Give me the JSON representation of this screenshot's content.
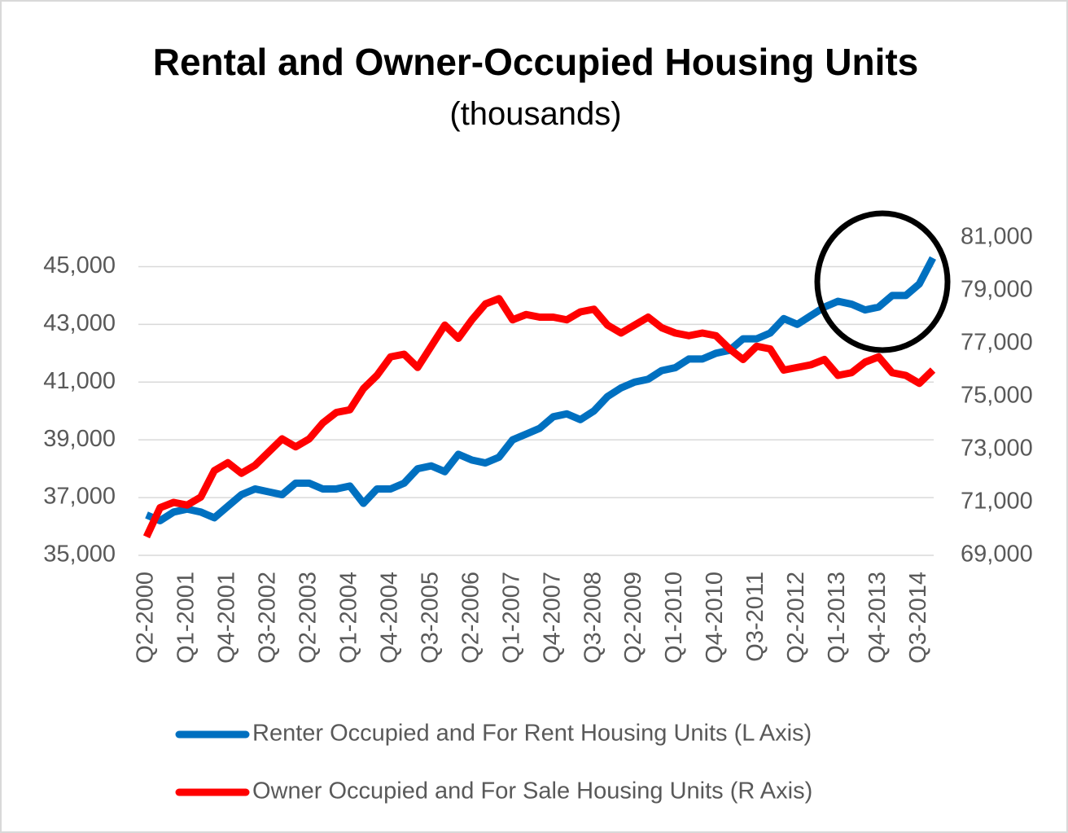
{
  "chart_data": {
    "type": "line",
    "title": "Rental and Owner-Occupied Housing Units",
    "subtitle": "(thousands)",
    "categories": [
      "Q2-2000",
      null,
      null,
      "Q1-2001",
      null,
      null,
      "Q4-2001",
      null,
      null,
      "Q3-2002",
      null,
      null,
      "Q2-2003",
      null,
      null,
      "Q1-2004",
      null,
      null,
      "Q4-2004",
      null,
      null,
      "Q3-2005",
      null,
      null,
      "Q2-2006",
      null,
      null,
      "Q1-2007",
      null,
      null,
      "Q4-2007",
      null,
      null,
      "Q3-2008",
      null,
      null,
      "Q2-2009",
      null,
      null,
      "Q1-2010",
      null,
      null,
      "Q4-2010",
      null,
      null,
      "Q3-2011",
      null,
      null,
      "Q2-2012",
      null,
      null,
      "Q1-2013",
      null,
      null,
      "Q4-2013",
      null,
      null,
      "Q3-2014",
      null
    ],
    "series": [
      {
        "name": "Renter Occupied and For Rent Housing Units (L Axis)",
        "color": "#0070c0",
        "axis": "y",
        "values": [
          36400,
          36200,
          36500,
          36600,
          36500,
          36300,
          36700,
          37100,
          37300,
          37200,
          37100,
          37500,
          37500,
          37300,
          37300,
          37400,
          36800,
          37300,
          37300,
          37500,
          38000,
          38100,
          37900,
          38500,
          38300,
          38200,
          38400,
          39000,
          39200,
          39400,
          39800,
          39900,
          39700,
          40000,
          40500,
          40800,
          41000,
          41100,
          41400,
          41500,
          41800,
          41800,
          42000,
          42100,
          42500,
          42500,
          42700,
          43200,
          43000,
          43300,
          43600,
          43800,
          43700,
          43500,
          43600,
          44000,
          44000,
          44400,
          45300
        ]
      },
      {
        "name": "Owner Occupied and For Sale Housing Units (R Axis)",
        "color": "#ff0000",
        "axis": "y2",
        "values": [
          69700,
          70800,
          71000,
          70900,
          71200,
          72200,
          72500,
          72100,
          72400,
          72900,
          73400,
          73100,
          73400,
          74000,
          74400,
          74500,
          75300,
          75800,
          76500,
          76600,
          76100,
          76900,
          77700,
          77200,
          77900,
          78500,
          78700,
          77900,
          78100,
          78000,
          78000,
          77900,
          78200,
          78300,
          77700,
          77400,
          77700,
          78000,
          77600,
          77400,
          77300,
          77400,
          77300,
          76800,
          76400,
          76900,
          76800,
          76000,
          76100,
          76200,
          76400,
          75800,
          75900,
          76300,
          76500,
          75900,
          75800,
          75500,
          76000
        ]
      }
    ],
    "ylim": [
      35000,
      46000
    ],
    "yticks": [
      {
        "value": 35000,
        "label": "35,000"
      },
      {
        "value": 37000,
        "label": "37,000"
      },
      {
        "value": 39000,
        "label": "39,000"
      },
      {
        "value": 41000,
        "label": "41,000"
      },
      {
        "value": 43000,
        "label": "43,000"
      },
      {
        "value": 45000,
        "label": "45,000"
      }
    ],
    "y2lim": [
      69000,
      81000
    ],
    "y2ticks": [
      {
        "value": 69000,
        "label": "69,000"
      },
      {
        "value": 71000,
        "label": "71,000"
      },
      {
        "value": 73000,
        "label": "73,000"
      },
      {
        "value": 75000,
        "label": "75,000"
      },
      {
        "value": 77000,
        "label": "77,000"
      },
      {
        "value": 79000,
        "label": "79,000"
      },
      {
        "value": 81000,
        "label": "81,000"
      }
    ],
    "grid": true,
    "legend": "bottom"
  }
}
